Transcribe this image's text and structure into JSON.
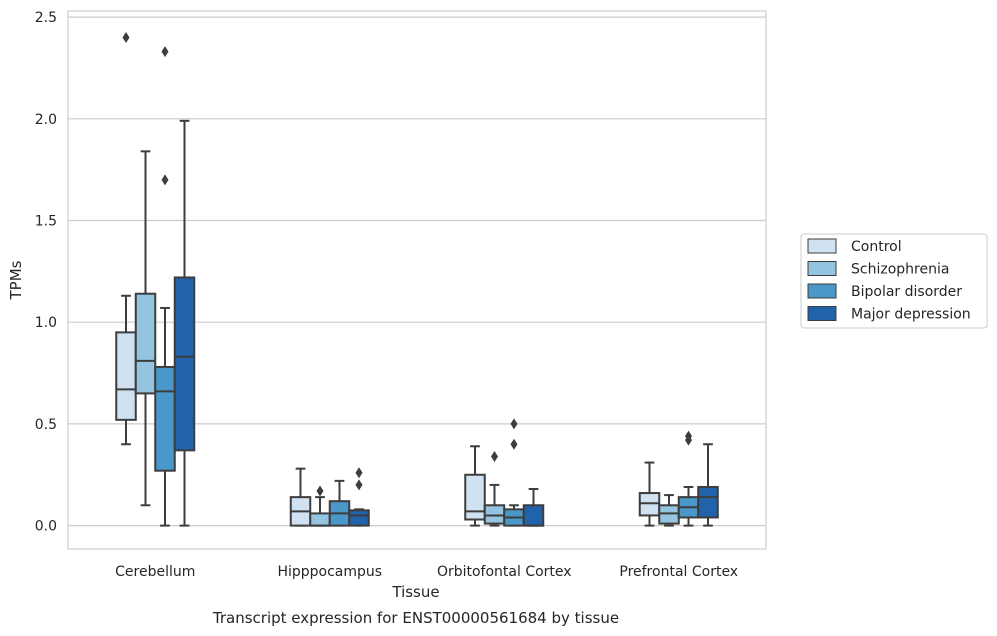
{
  "chart_data": {
    "type": "box",
    "title": "",
    "caption": "Transcript expression for ENST00000561684 by tissue",
    "xlabel": "Tissue",
    "ylabel": "TPMs",
    "ylim": [
      -0.115,
      2.53
    ],
    "yticks": [
      0.0,
      0.5,
      1.0,
      1.5,
      2.0,
      2.5
    ],
    "ytick_labels": [
      "0.0",
      "0.5",
      "1.0",
      "1.5",
      "2.0",
      "2.5"
    ],
    "grid": "horizontal",
    "legend_position": "right",
    "categories": [
      "Cerebellum",
      "Hipppocampus",
      "Orbitofontal Cortex",
      "Prefrontal Cortex"
    ],
    "series": [
      {
        "name": "Control",
        "color": "#d0e1f2",
        "boxes": [
          {
            "whislo": 0.4,
            "q1": 0.52,
            "med": 0.67,
            "q3": 0.95,
            "whishi": 1.13,
            "fliers": [
              2.4
            ]
          },
          {
            "whislo": 0.0,
            "q1": 0.0,
            "med": 0.07,
            "q3": 0.14,
            "whishi": 0.28,
            "fliers": []
          },
          {
            "whislo": 0.0,
            "q1": 0.03,
            "med": 0.07,
            "q3": 0.25,
            "whishi": 0.39,
            "fliers": []
          },
          {
            "whislo": 0.0,
            "q1": 0.05,
            "med": 0.11,
            "q3": 0.16,
            "whishi": 0.31,
            "fliers": []
          }
        ]
      },
      {
        "name": "Schizophrenia",
        "color": "#94c4df",
        "boxes": [
          {
            "whislo": 0.1,
            "q1": 0.65,
            "med": 0.81,
            "q3": 1.14,
            "whishi": 1.84,
            "fliers": []
          },
          {
            "whislo": 0.0,
            "q1": 0.0,
            "med": 0.0,
            "q3": 0.06,
            "whishi": 0.14,
            "fliers": [
              0.17
            ]
          },
          {
            "whislo": 0.0,
            "q1": 0.01,
            "med": 0.05,
            "q3": 0.1,
            "whishi": 0.2,
            "fliers": [
              0.34
            ]
          },
          {
            "whislo": 0.0,
            "q1": 0.01,
            "med": 0.06,
            "q3": 0.1,
            "whishi": 0.15,
            "fliers": []
          }
        ]
      },
      {
        "name": "Bipolar disorder",
        "color": "#4a98c9",
        "boxes": [
          {
            "whislo": 0.0,
            "q1": 0.27,
            "med": 0.66,
            "q3": 0.78,
            "whishi": 1.07,
            "fliers": [
              1.7,
              2.33
            ]
          },
          {
            "whislo": 0.0,
            "q1": 0.0,
            "med": 0.06,
            "q3": 0.12,
            "whishi": 0.22,
            "fliers": []
          },
          {
            "whislo": 0.0,
            "q1": 0.0,
            "med": 0.04,
            "q3": 0.08,
            "whishi": 0.1,
            "fliers": [
              0.4,
              0.5
            ]
          },
          {
            "whislo": 0.0,
            "q1": 0.04,
            "med": 0.09,
            "q3": 0.14,
            "whishi": 0.19,
            "fliers": [
              0.42,
              0.44
            ]
          }
        ]
      },
      {
        "name": "Major depression",
        "color": "#2163aa",
        "boxes": [
          {
            "whislo": 0.0,
            "q1": 0.37,
            "med": 0.83,
            "q3": 1.22,
            "whishi": 1.99,
            "fliers": []
          },
          {
            "whislo": 0.0,
            "q1": 0.0,
            "med": 0.05,
            "q3": 0.075,
            "whishi": 0.08,
            "fliers": [
              0.2,
              0.26
            ]
          },
          {
            "whislo": 0.0,
            "q1": 0.0,
            "med": 0.0,
            "q3": 0.1,
            "whishi": 0.18,
            "fliers": []
          },
          {
            "whislo": 0.0,
            "q1": 0.04,
            "med": 0.14,
            "q3": 0.19,
            "whishi": 0.4,
            "fliers": []
          }
        ]
      }
    ]
  },
  "colors": {
    "frame": "#cccccc",
    "grid": "#cccccc",
    "box_edge": "#3d3d3d",
    "text": "#262626"
  }
}
